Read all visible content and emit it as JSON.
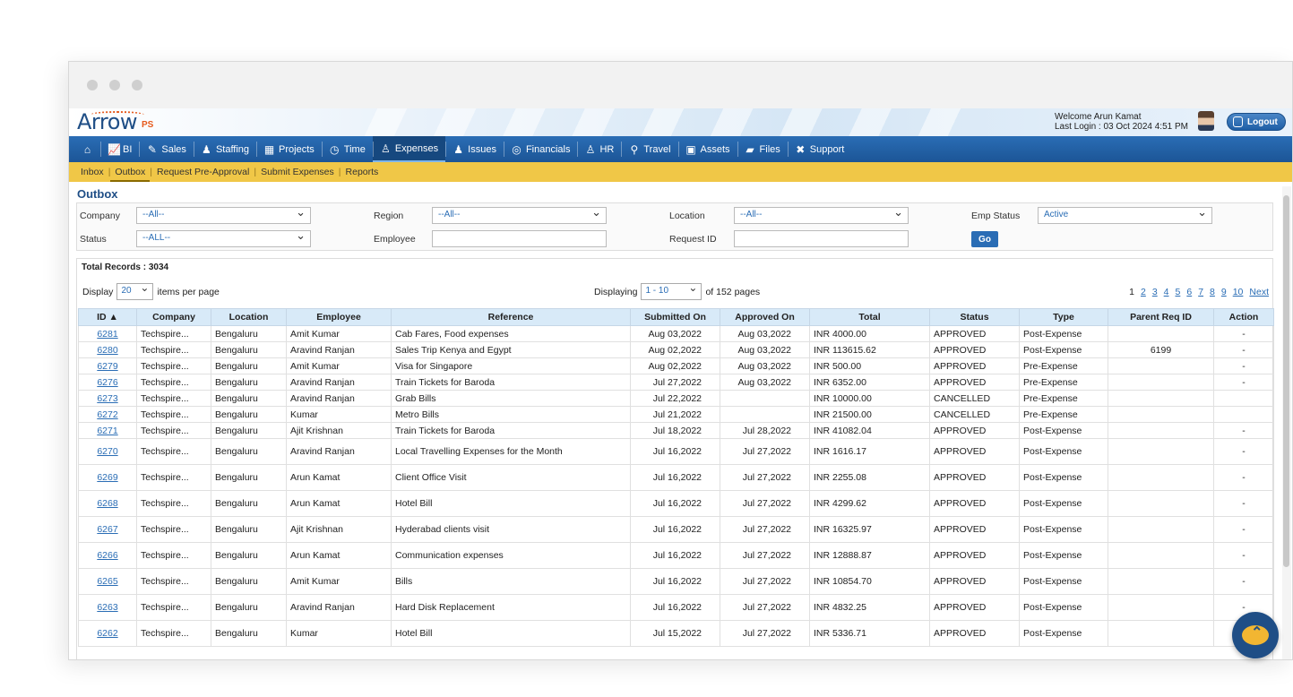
{
  "header": {
    "logo_text": "Arrow",
    "logo_suffix": "PS",
    "welcome": "Welcome Arun Kamat",
    "last_login": "Last Login : 03 Oct 2024 4:51 PM",
    "logout_label": "Logout"
  },
  "nav": {
    "items": [
      {
        "label": "",
        "icon": "home-icon"
      },
      {
        "label": "BI",
        "icon": "chart-icon"
      },
      {
        "label": "Sales",
        "icon": "tag-icon"
      },
      {
        "label": "Staffing",
        "icon": "people-icon"
      },
      {
        "label": "Projects",
        "icon": "building-icon"
      },
      {
        "label": "Time",
        "icon": "clock-icon"
      },
      {
        "label": "Expenses",
        "icon": "expenses-icon"
      },
      {
        "label": "Issues",
        "icon": "issues-icon"
      },
      {
        "label": "Financials",
        "icon": "coins-icon"
      },
      {
        "label": "HR",
        "icon": "hr-icon"
      },
      {
        "label": "Travel",
        "icon": "travel-icon"
      },
      {
        "label": "Assets",
        "icon": "box-icon"
      },
      {
        "label": "Files",
        "icon": "folder-icon"
      },
      {
        "label": "Support",
        "icon": "tools-icon"
      }
    ],
    "active": "Expenses"
  },
  "subnav": {
    "items": [
      "Inbox",
      "Outbox",
      "Request Pre-Approval",
      "Submit Expenses",
      "Reports"
    ],
    "active": "Outbox"
  },
  "page": {
    "title": "Outbox"
  },
  "filters": {
    "company_label": "Company",
    "company_value": "--All--",
    "region_label": "Region",
    "region_value": "--All--",
    "location_label": "Location",
    "location_value": "--All--",
    "emp_status_label": "Emp Status",
    "emp_status_value": "Active",
    "status_label": "Status",
    "status_value": "--ALL--",
    "employee_label": "Employee",
    "employee_value": "",
    "request_id_label": "Request ID",
    "request_id_value": "",
    "go_label": "Go"
  },
  "results": {
    "total_records": "Total Records : 3034",
    "display_label": "Display",
    "display_value": "20",
    "items_per_page": "items per page",
    "displaying_label": "Displaying",
    "displaying_value": "1 - 10",
    "of_pages": "of 152 pages",
    "pages": [
      "1",
      "2",
      "3",
      "4",
      "5",
      "6",
      "7",
      "8",
      "9",
      "10",
      "Next"
    ]
  },
  "table": {
    "columns": [
      "ID ▲",
      "Company",
      "Location",
      "Employee",
      "Reference",
      "Submitted On",
      "Approved On",
      "Total",
      "Status",
      "Type",
      "Parent Req ID",
      "Action"
    ],
    "rows": [
      [
        "6281",
        "Techspire...",
        "Bengaluru",
        "Amit Kumar",
        "Cab Fares, Food expenses",
        "Aug 03,2022",
        "Aug 03,2022",
        "INR 4000.00",
        "APPROVED",
        "Post-Expense",
        "",
        "-"
      ],
      [
        "6280",
        "Techspire...",
        "Bengaluru",
        "Aravind Ranjan",
        "Sales Trip Kenya and Egypt",
        "Aug 02,2022",
        "Aug 03,2022",
        "INR 113615.62",
        "APPROVED",
        "Post-Expense",
        "6199",
        "-"
      ],
      [
        "6279",
        "Techspire...",
        "Bengaluru",
        "Amit Kumar",
        "Visa for Singapore",
        "Aug 02,2022",
        "Aug 03,2022",
        "INR 500.00",
        "APPROVED",
        "Pre-Expense",
        "",
        "-"
      ],
      [
        "6276",
        "Techspire...",
        "Bengaluru",
        "Aravind Ranjan",
        "Train Tickets for Baroda",
        "Jul 27,2022",
        "Aug 03,2022",
        "INR 6352.00",
        "APPROVED",
        "Pre-Expense",
        "",
        "-"
      ],
      [
        "6273",
        "Techspire...",
        "Bengaluru",
        "Aravind Ranjan",
        "Grab Bills",
        "Jul 22,2022",
        "",
        "INR 10000.00",
        "CANCELLED",
        "Pre-Expense",
        "",
        ""
      ],
      [
        "6272",
        "Techspire...",
        "Bengaluru",
        "Kumar",
        "Metro Bills",
        "Jul 21,2022",
        "",
        "INR 21500.00",
        "CANCELLED",
        "Pre-Expense",
        "",
        ""
      ],
      [
        "6271",
        "Techspire...",
        "Bengaluru",
        "Ajit Krishnan",
        "Train Tickets for Baroda",
        "Jul 18,2022",
        "Jul 28,2022",
        "INR 41082.04",
        "APPROVED",
        "Post-Expense",
        "",
        "-"
      ],
      [
        "6270",
        "Techspire...",
        "Bengaluru",
        "Aravind Ranjan",
        "Local Travelling Expenses for the Month",
        "Jul 16,2022",
        "Jul 27,2022",
        "INR 1616.17",
        "APPROVED",
        "Post-Expense",
        "",
        "-"
      ],
      [
        "6269",
        "Techspire...",
        "Bengaluru",
        "Arun Kamat",
        "Client Office Visit",
        "Jul 16,2022",
        "Jul 27,2022",
        "INR 2255.08",
        "APPROVED",
        "Post-Expense",
        "",
        "-"
      ],
      [
        "6268",
        "Techspire...",
        "Bengaluru",
        "Arun Kamat",
        "Hotel Bill",
        "Jul 16,2022",
        "Jul 27,2022",
        "INR 4299.62",
        "APPROVED",
        "Post-Expense",
        "",
        "-"
      ],
      [
        "6267",
        "Techspire...",
        "Bengaluru",
        "Ajit Krishnan",
        "Hyderabad clients visit",
        "Jul 16,2022",
        "Jul 27,2022",
        "INR 16325.97",
        "APPROVED",
        "Post-Expense",
        "",
        "-"
      ],
      [
        "6266",
        "Techspire...",
        "Bengaluru",
        "Arun Kamat",
        "Communication expenses",
        "Jul 16,2022",
        "Jul 27,2022",
        "INR 12888.87",
        "APPROVED",
        "Post-Expense",
        "",
        "-"
      ],
      [
        "6265",
        "Techspire...",
        "Bengaluru",
        "Amit Kumar",
        "Bills",
        "Jul 16,2022",
        "Jul 27,2022",
        "INR 10854.70",
        "APPROVED",
        "Post-Expense",
        "",
        "-"
      ],
      [
        "6263",
        "Techspire...",
        "Bengaluru",
        "Aravind Ranjan",
        "Hard Disk Replacement",
        "Jul 16,2022",
        "Jul 27,2022",
        "INR 4832.25",
        "APPROVED",
        "Post-Expense",
        "",
        "-"
      ],
      [
        "6262",
        "Techspire...",
        "Bengaluru",
        "Kumar",
        "Hotel Bill",
        "Jul 15,2022",
        "Jul 27,2022",
        "INR 5336.71",
        "APPROVED",
        "Post-Expense",
        "",
        ""
      ]
    ]
  },
  "colors": {
    "nav_blue": "#1f5fa6",
    "subnav_yellow": "#f0c747",
    "link_blue": "#2a6db5",
    "header_blue": "#d8eaf8"
  }
}
